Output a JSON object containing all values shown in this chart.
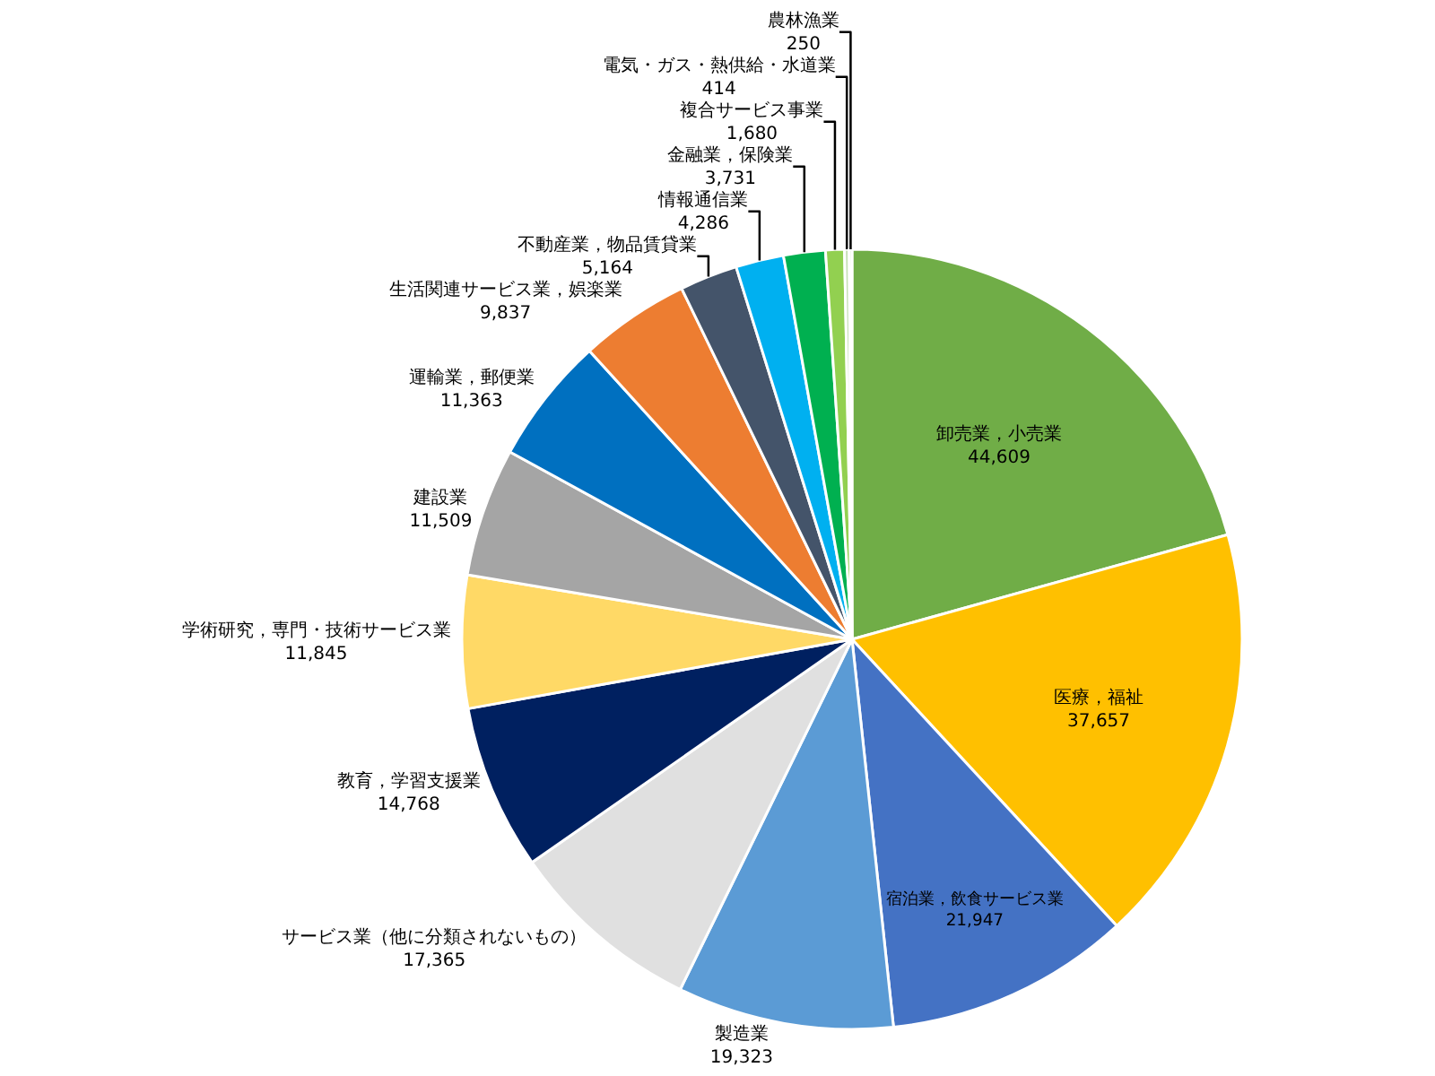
{
  "chart_data": {
    "type": "pie",
    "categories": [
      "卸売業，小売業",
      "医療，福祉",
      "宿泊業，飲食サービス業",
      "製造業",
      "サービス業（他に分類されないもの）",
      "教育，学習支援業",
      "学術研究，専門・技術サービス業",
      "建設業",
      "運輸業，郵便業",
      "生活関連サービス業，娯楽業",
      "不動産業，物品賃貸業",
      "情報通信業",
      "金融業，保険業",
      "複合サービス事業",
      "電気・ガス・熱供給・水道業",
      "農林漁業"
    ],
    "values": [
      44609,
      37657,
      21947,
      19323,
      17365,
      14768,
      11845,
      11509,
      11363,
      9837,
      5164,
      4286,
      3731,
      1680,
      414,
      250
    ],
    "colors": [
      "#70ad47",
      "#ffc000",
      "#4472c4",
      "#5b9bd5",
      "#e0e0e0",
      "#002060",
      "#ffd966",
      "#a5a5a5",
      "#0070c0",
      "#ed7d31",
      "#44546a",
      "#00b0f0",
      "#00b050",
      "#92d050",
      "#c5e0b4",
      "#a9d18e"
    ],
    "value_labels": [
      "44,609",
      "37,657",
      "21,947",
      "19,323",
      "17,365",
      "14,768",
      "11,845",
      "11,509",
      "11,363",
      "9,837",
      "5,164",
      "4,286",
      "3,731",
      "1,680",
      "414",
      "250"
    ],
    "legend": false
  }
}
